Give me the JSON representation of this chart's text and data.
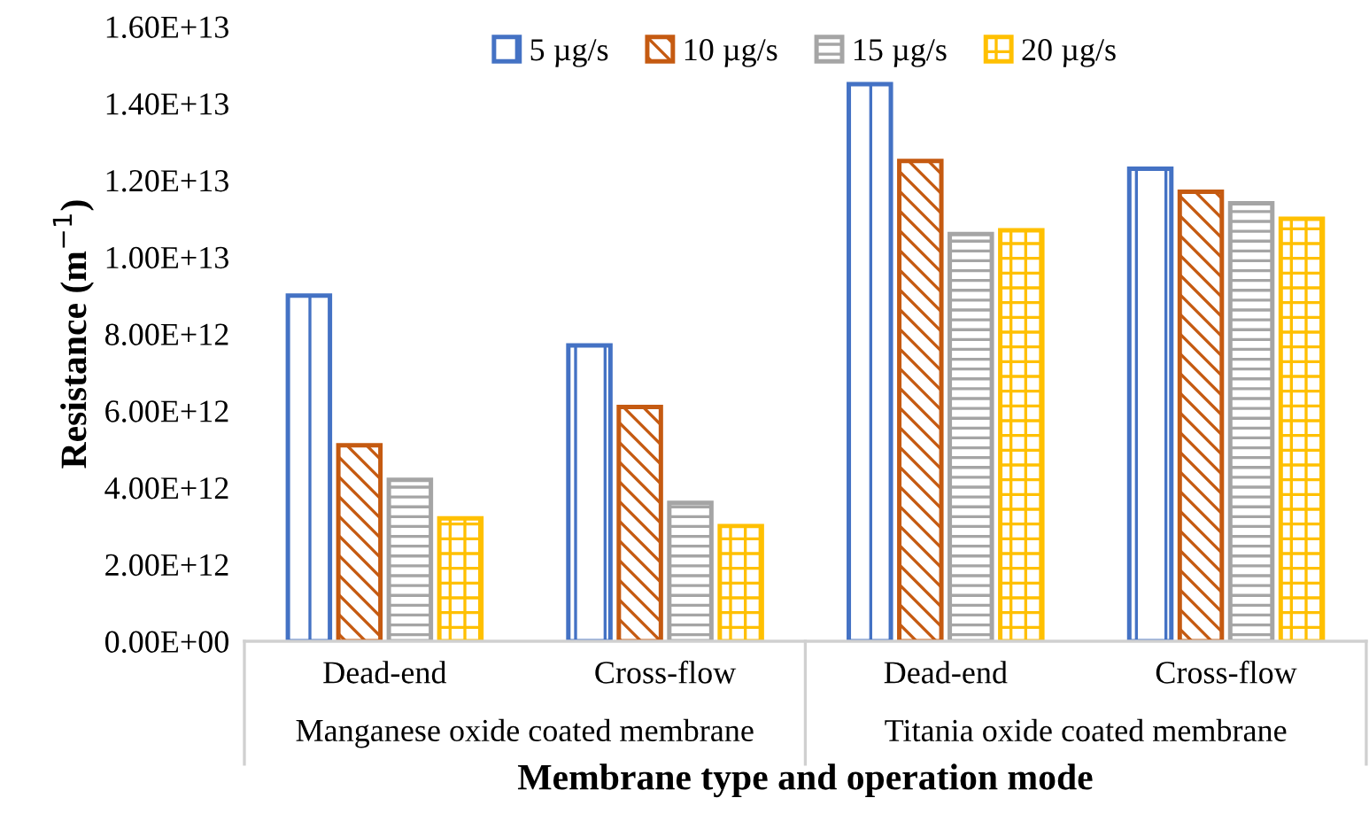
{
  "chart_data": {
    "type": "bar",
    "xlabel": "Membrane type and operation mode",
    "ylabel": "Resistance (m$^{−1}$)",
    "categories": [
      "Dead-end",
      "Cross-flow",
      "Dead-end",
      "Cross-flow"
    ],
    "annotations": [
      "Manganese oxide coated membrane",
      "Titania oxide coated membrane"
    ],
    "series": [
      {
        "name": "5 µg/s",
        "color": "#4472c4",
        "values": [
          9000000000000.0,
          7700000000000.0,
          14500000000000.0,
          12300000000000.0
        ]
      },
      {
        "name": "10 µg/s",
        "color": "#c55a11",
        "values": [
          5100000000000.0,
          6100000000000.0,
          12500000000000.0,
          11700000000000.0
        ]
      },
      {
        "name": "15 µg/s",
        "color": "#a5a5a5",
        "values": [
          4200000000000.0,
          3600000000000.0,
          10600000000000.0,
          11400000000000.0
        ]
      },
      {
        "name": "20 µg/s",
        "color": "#ffc000",
        "values": [
          3200000000000.0,
          3000000000000.0,
          10700000000000.0,
          11000000000000.0
        ]
      }
    ],
    "ylim": [
      0,
      16000000000000.0
    ],
    "yticks": [
      {
        "value": 0,
        "label": "0.00E+00"
      },
      {
        "value": 2000000000000.0,
        "label": "2.00E+12"
      },
      {
        "value": 4000000000000.0,
        "label": "4.00E+12"
      },
      {
        "value": 6000000000000.0,
        "label": "6.00E+12"
      },
      {
        "value": 8000000000000.0,
        "label": "8.00E+12"
      },
      {
        "value": 10000000000000.0,
        "label": "1.00E+13"
      },
      {
        "value": 12000000000000.0,
        "label": "1.20E+13"
      },
      {
        "value": 14000000000000.0,
        "label": "1.40E+13"
      },
      {
        "value": 16000000000000.0,
        "label": "1.60E+13"
      }
    ],
    "grid": false,
    "legend": "top"
  }
}
